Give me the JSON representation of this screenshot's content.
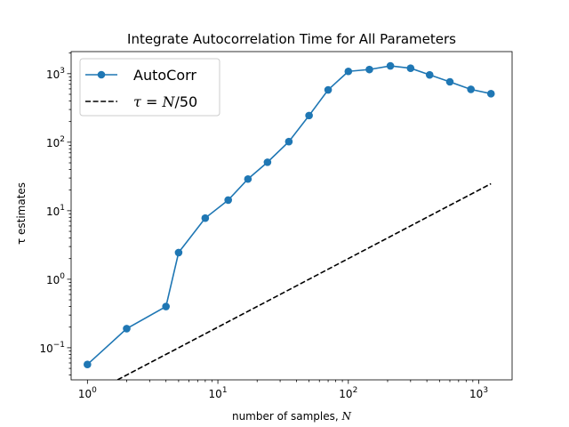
{
  "chart_data": {
    "type": "line",
    "title": "Integrate Autocorrelation Time for All Parameters",
    "xlabel": "number of samples, N",
    "ylabel": "τ estimates",
    "xscale": "log",
    "yscale": "log",
    "xlim": [
      0.75,
      1800
    ],
    "ylim": [
      0.034,
      2100
    ],
    "grid": false,
    "legend_position": "top-left",
    "x_ticks": [
      {
        "value": 1,
        "base": "10",
        "exp": "0"
      },
      {
        "value": 10,
        "base": "10",
        "exp": "1"
      },
      {
        "value": 100,
        "base": "10",
        "exp": "2"
      },
      {
        "value": 1000,
        "base": "10",
        "exp": "3"
      }
    ],
    "y_ticks": [
      {
        "value": 0.1,
        "base": "10",
        "exp": "−1"
      },
      {
        "value": 1,
        "base": "10",
        "exp": "0"
      },
      {
        "value": 10,
        "base": "10",
        "exp": "1"
      },
      {
        "value": 100,
        "base": "10",
        "exp": "2"
      },
      {
        "value": 1000,
        "base": "10",
        "exp": "3"
      }
    ],
    "series": [
      {
        "name": "AutoCorr",
        "color": "#1f77b4",
        "style": "solid",
        "marker": "circle",
        "x": [
          1,
          2,
          4,
          5,
          8,
          12,
          17,
          24,
          35,
          50,
          70,
          100,
          145,
          210,
          300,
          420,
          600,
          870,
          1240
        ],
        "y": [
          0.057,
          0.19,
          0.4,
          2.45,
          7.8,
          14.3,
          29,
          51,
          102,
          245,
          580,
          1080,
          1150,
          1300,
          1200,
          960,
          760,
          590,
          510
        ]
      },
      {
        "name": "τ = N/50",
        "color": "#000000",
        "style": "dashed",
        "marker": "none",
        "x": [
          1.7,
          1240
        ],
        "y": [
          0.034,
          24.8
        ]
      }
    ]
  }
}
